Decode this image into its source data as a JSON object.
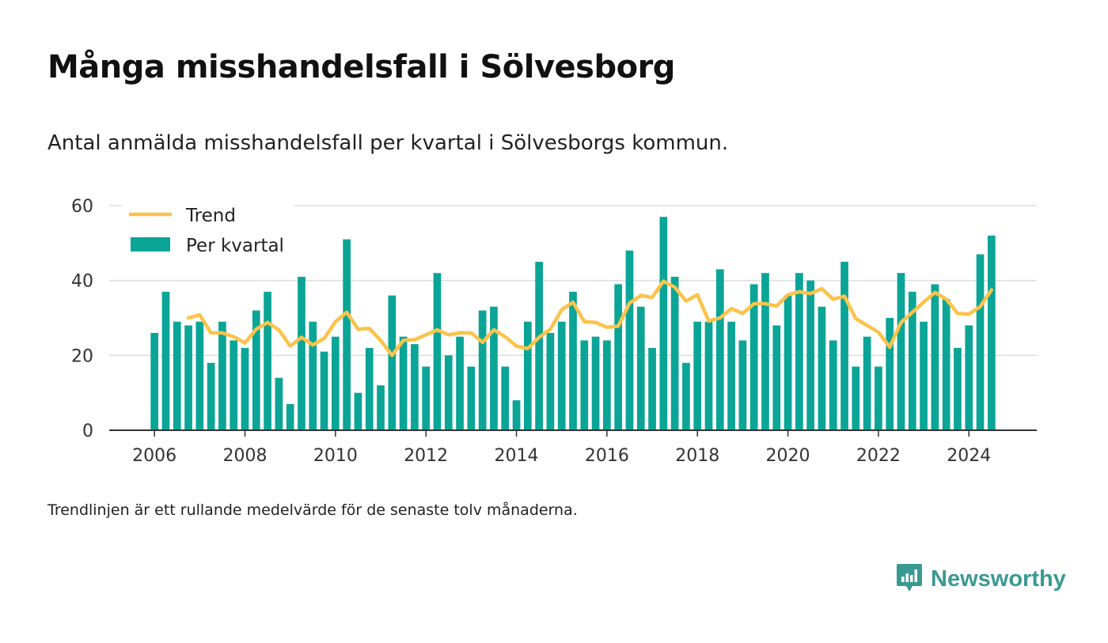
{
  "title": "Många misshandelsfall i Sölvesborg",
  "subtitle": "Antal anmälda misshandelsfall per kvartal i Sölvesborgs kommun.",
  "footnote": "Trendlinjen är ett rullande medelvärde för de senaste tolv månaderna.",
  "brand": {
    "name": "Newsworthy",
    "icon": "newsworthy-logo-icon",
    "color": "#3a9a92"
  },
  "chart_data": {
    "type": "bar",
    "x_tick_labels": [
      "2006",
      "2008",
      "2010",
      "2012",
      "2014",
      "2016",
      "2018",
      "2020",
      "2022",
      "2024"
    ],
    "y_tick_labels": [
      "0",
      "20",
      "40",
      "60"
    ],
    "ylim": [
      0,
      60
    ],
    "xlim": [
      2005,
      2025.5
    ],
    "grid": true,
    "legend_position": "top-left",
    "colors": {
      "bars": "#0aa597",
      "trend": "#fbc34a",
      "grid": "#dddddd",
      "axis": "#333333"
    },
    "x": [
      "2006-Q1",
      "2006-Q2",
      "2006-Q3",
      "2006-Q4",
      "2007-Q1",
      "2007-Q2",
      "2007-Q3",
      "2007-Q4",
      "2008-Q1",
      "2008-Q2",
      "2008-Q3",
      "2008-Q4",
      "2009-Q1",
      "2009-Q2",
      "2009-Q3",
      "2009-Q4",
      "2010-Q1",
      "2010-Q2",
      "2010-Q3",
      "2010-Q4",
      "2011-Q1",
      "2011-Q2",
      "2011-Q3",
      "2011-Q4",
      "2012-Q1",
      "2012-Q2",
      "2012-Q3",
      "2012-Q4",
      "2013-Q1",
      "2013-Q2",
      "2013-Q3",
      "2013-Q4",
      "2014-Q1",
      "2014-Q2",
      "2014-Q3",
      "2014-Q4",
      "2015-Q1",
      "2015-Q2",
      "2015-Q3",
      "2015-Q4",
      "2016-Q1",
      "2016-Q2",
      "2016-Q3",
      "2016-Q4",
      "2017-Q1",
      "2017-Q2",
      "2017-Q3",
      "2017-Q4",
      "2018-Q1",
      "2018-Q2",
      "2018-Q3",
      "2018-Q4",
      "2019-Q1",
      "2019-Q2",
      "2019-Q3",
      "2019-Q4",
      "2020-Q1",
      "2020-Q2",
      "2020-Q3",
      "2020-Q4",
      "2021-Q1",
      "2021-Q2",
      "2021-Q3",
      "2021-Q4",
      "2022-Q1",
      "2022-Q2",
      "2022-Q3",
      "2022-Q4",
      "2023-Q1",
      "2023-Q2",
      "2023-Q3",
      "2023-Q4",
      "2024-Q1",
      "2024-Q2",
      "2024-Q3"
    ],
    "series": [
      {
        "name": "Per kvartal",
        "type": "bar",
        "values": [
          26,
          37,
          29,
          28,
          29,
          18,
          29,
          24,
          22,
          32,
          37,
          14,
          7,
          41,
          29,
          21,
          25,
          51,
          10,
          22,
          12,
          36,
          25,
          23,
          17,
          42,
          20,
          25,
          17,
          32,
          33,
          17,
          8,
          29,
          45,
          26,
          29,
          37,
          24,
          25,
          24,
          39,
          48,
          33,
          22,
          57,
          41,
          18,
          29,
          29,
          43,
          29,
          24,
          39,
          42,
          28,
          36,
          42,
          40,
          33,
          24,
          45,
          17,
          25,
          17,
          30,
          42,
          37,
          29,
          39,
          35,
          22,
          28,
          47,
          52
        ]
      },
      {
        "name": "Trend",
        "type": "line",
        "values": [
          null,
          null,
          null,
          30,
          30.8,
          26,
          26,
          25,
          23.3,
          27,
          28.8,
          26.8,
          22.5,
          24.8,
          22.8,
          24.5,
          29,
          31.5,
          27,
          27.2,
          24,
          20,
          24,
          24.2,
          25.5,
          26.8,
          25.5,
          26,
          26,
          23.5,
          26.8,
          25,
          22.5,
          21.8,
          24.8,
          27,
          32.2,
          34.2,
          29,
          28.8,
          27.5,
          27.8,
          34,
          36,
          35.5,
          39.8,
          38.2,
          34.5,
          36.2,
          29.2,
          30,
          32.5,
          31.2,
          33.8,
          33.8,
          33.2,
          36.2,
          37,
          36.5,
          37.8,
          35,
          35.8,
          29.8,
          28,
          26.2,
          22.2,
          28.8,
          31.5,
          34.2,
          36.8,
          35,
          31.2,
          31,
          33,
          37.5
        ]
      }
    ]
  }
}
